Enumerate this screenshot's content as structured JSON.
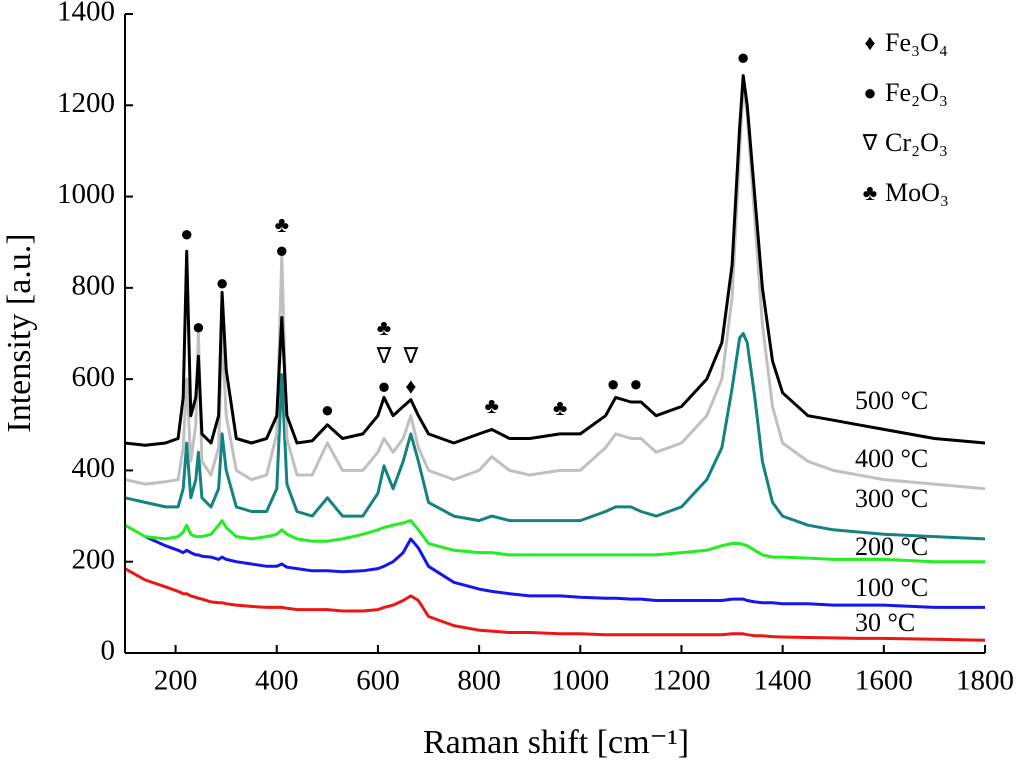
{
  "chart_data": {
    "type": "line",
    "xlabel": "Raman shift [cm⁻¹]",
    "ylabel": "Intensity [a.u.]",
    "xlim": [
      100,
      1800
    ],
    "ylim": [
      0,
      1400
    ],
    "xticks": [
      200,
      400,
      600,
      800,
      1000,
      1200,
      1400,
      1600,
      1800
    ],
    "yticks": [
      0,
      200,
      400,
      600,
      800,
      1000,
      1200,
      1400
    ],
    "x": [
      100,
      140,
      180,
      205,
      215,
      222,
      230,
      240,
      245,
      252,
      270,
      285,
      292,
      300,
      320,
      350,
      380,
      400,
      410,
      420,
      440,
      470,
      500,
      530,
      570,
      600,
      612,
      630,
      650,
      665,
      680,
      700,
      750,
      800,
      825,
      860,
      900,
      960,
      1000,
      1050,
      1070,
      1100,
      1120,
      1150,
      1200,
      1250,
      1280,
      1300,
      1315,
      1322,
      1330,
      1345,
      1360,
      1380,
      1400,
      1450,
      1500,
      1550,
      1600,
      1700,
      1800
    ],
    "series": [
      {
        "name": "500 °C",
        "color": "#000000",
        "values": [
          460,
          455,
          460,
          470,
          560,
          880,
          520,
          560,
          650,
          480,
          460,
          520,
          790,
          620,
          470,
          460,
          470,
          520,
          735,
          520,
          460,
          465,
          500,
          470,
          480,
          520,
          560,
          520,
          540,
          555,
          520,
          480,
          460,
          480,
          490,
          470,
          470,
          480,
          480,
          520,
          560,
          550,
          550,
          520,
          540,
          600,
          680,
          850,
          1150,
          1265,
          1200,
          1000,
          800,
          640,
          570,
          520,
          510,
          500,
          490,
          470,
          460
        ]
      },
      {
        "name": "400 °C",
        "color": "#c0c0c0",
        "values": [
          380,
          370,
          375,
          380,
          450,
          600,
          420,
          500,
          700,
          420,
          390,
          450,
          700,
          520,
          400,
          380,
          390,
          480,
          870,
          470,
          390,
          390,
          460,
          400,
          400,
          440,
          470,
          440,
          470,
          520,
          450,
          400,
          380,
          400,
          430,
          400,
          390,
          400,
          400,
          450,
          480,
          470,
          470,
          440,
          460,
          520,
          600,
          780,
          1100,
          1240,
          1180,
          950,
          720,
          540,
          460,
          420,
          400,
          390,
          380,
          370,
          360
        ]
      },
      {
        "name": "300 °C",
        "color": "#148282",
        "values": [
          340,
          330,
          320,
          320,
          360,
          460,
          340,
          380,
          440,
          340,
          320,
          360,
          480,
          400,
          320,
          310,
          310,
          360,
          610,
          370,
          310,
          300,
          340,
          300,
          300,
          350,
          410,
          360,
          420,
          480,
          420,
          330,
          300,
          290,
          300,
          290,
          290,
          290,
          290,
          310,
          320,
          320,
          310,
          300,
          320,
          380,
          450,
          580,
          690,
          700,
          680,
          560,
          420,
          330,
          300,
          280,
          270,
          265,
          260,
          255,
          250
        ]
      },
      {
        "name": "200 °C",
        "color": "#22ee22",
        "values": [
          280,
          255,
          250,
          255,
          265,
          280,
          260,
          255,
          255,
          255,
          260,
          280,
          290,
          275,
          255,
          250,
          255,
          260,
          270,
          260,
          250,
          245,
          245,
          250,
          260,
          270,
          275,
          280,
          285,
          290,
          270,
          240,
          225,
          220,
          220,
          215,
          215,
          215,
          215,
          215,
          215,
          215,
          215,
          215,
          220,
          225,
          235,
          240,
          240,
          238,
          235,
          225,
          215,
          210,
          210,
          208,
          205,
          205,
          205,
          200,
          200
        ]
      },
      {
        "name": "100 °C",
        "color": "#1515ee",
        "values": [
          null,
          255,
          235,
          225,
          220,
          225,
          220,
          215,
          215,
          212,
          210,
          205,
          210,
          205,
          200,
          195,
          190,
          190,
          195,
          188,
          185,
          180,
          180,
          178,
          180,
          185,
          190,
          200,
          220,
          250,
          230,
          190,
          155,
          140,
          135,
          130,
          125,
          125,
          122,
          120,
          120,
          118,
          118,
          115,
          115,
          115,
          115,
          118,
          118,
          118,
          115,
          112,
          110,
          110,
          108,
          108,
          105,
          105,
          105,
          100,
          100
        ]
      },
      {
        "name": "30 °C",
        "color": "#ee1515",
        "values": [
          185,
          160,
          145,
          135,
          130,
          130,
          125,
          122,
          120,
          118,
          112,
          110,
          110,
          108,
          105,
          102,
          100,
          100,
          100,
          98,
          95,
          95,
          95,
          92,
          92,
          95,
          100,
          105,
          115,
          125,
          115,
          80,
          60,
          50,
          48,
          45,
          45,
          42,
          42,
          40,
          40,
          40,
          40,
          40,
          40,
          40,
          40,
          42,
          42,
          42,
          40,
          38,
          38,
          36,
          35,
          34,
          33,
          32,
          32,
          30,
          28
        ]
      }
    ],
    "markers": [
      {
        "x": 222,
        "y": 914,
        "text": "●"
      },
      {
        "x": 245,
        "y": 710,
        "text": "●"
      },
      {
        "x": 292,
        "y": 806,
        "text": "●"
      },
      {
        "x": 410,
        "y": 878,
        "text": "●"
      },
      {
        "x": 410,
        "y": 933,
        "text": "♣"
      },
      {
        "x": 500,
        "y": 528,
        "text": "●"
      },
      {
        "x": 612,
        "y": 580,
        "text": "●"
      },
      {
        "x": 612,
        "y": 646,
        "text": "∇"
      },
      {
        "x": 612,
        "y": 708,
        "text": "♣"
      },
      {
        "x": 665,
        "y": 580,
        "text": "♦"
      },
      {
        "x": 665,
        "y": 646,
        "text": "∇"
      },
      {
        "x": 825,
        "y": 537,
        "text": "♣"
      },
      {
        "x": 960,
        "y": 532,
        "text": "♣"
      },
      {
        "x": 1065,
        "y": 585,
        "text": "●"
      },
      {
        "x": 1110,
        "y": 585,
        "text": "●"
      },
      {
        "x": 1322,
        "y": 1300,
        "text": "●"
      }
    ],
    "phase_legend": [
      {
        "symbol": "♦",
        "label": "Fe₃O₄"
      },
      {
        "symbol": "●",
        "label": "Fe₂O₃"
      },
      {
        "symbol": "∇",
        "label": "Cr₂O₃"
      },
      {
        "symbol": "♣",
        "label": "MoO₃"
      }
    ]
  }
}
